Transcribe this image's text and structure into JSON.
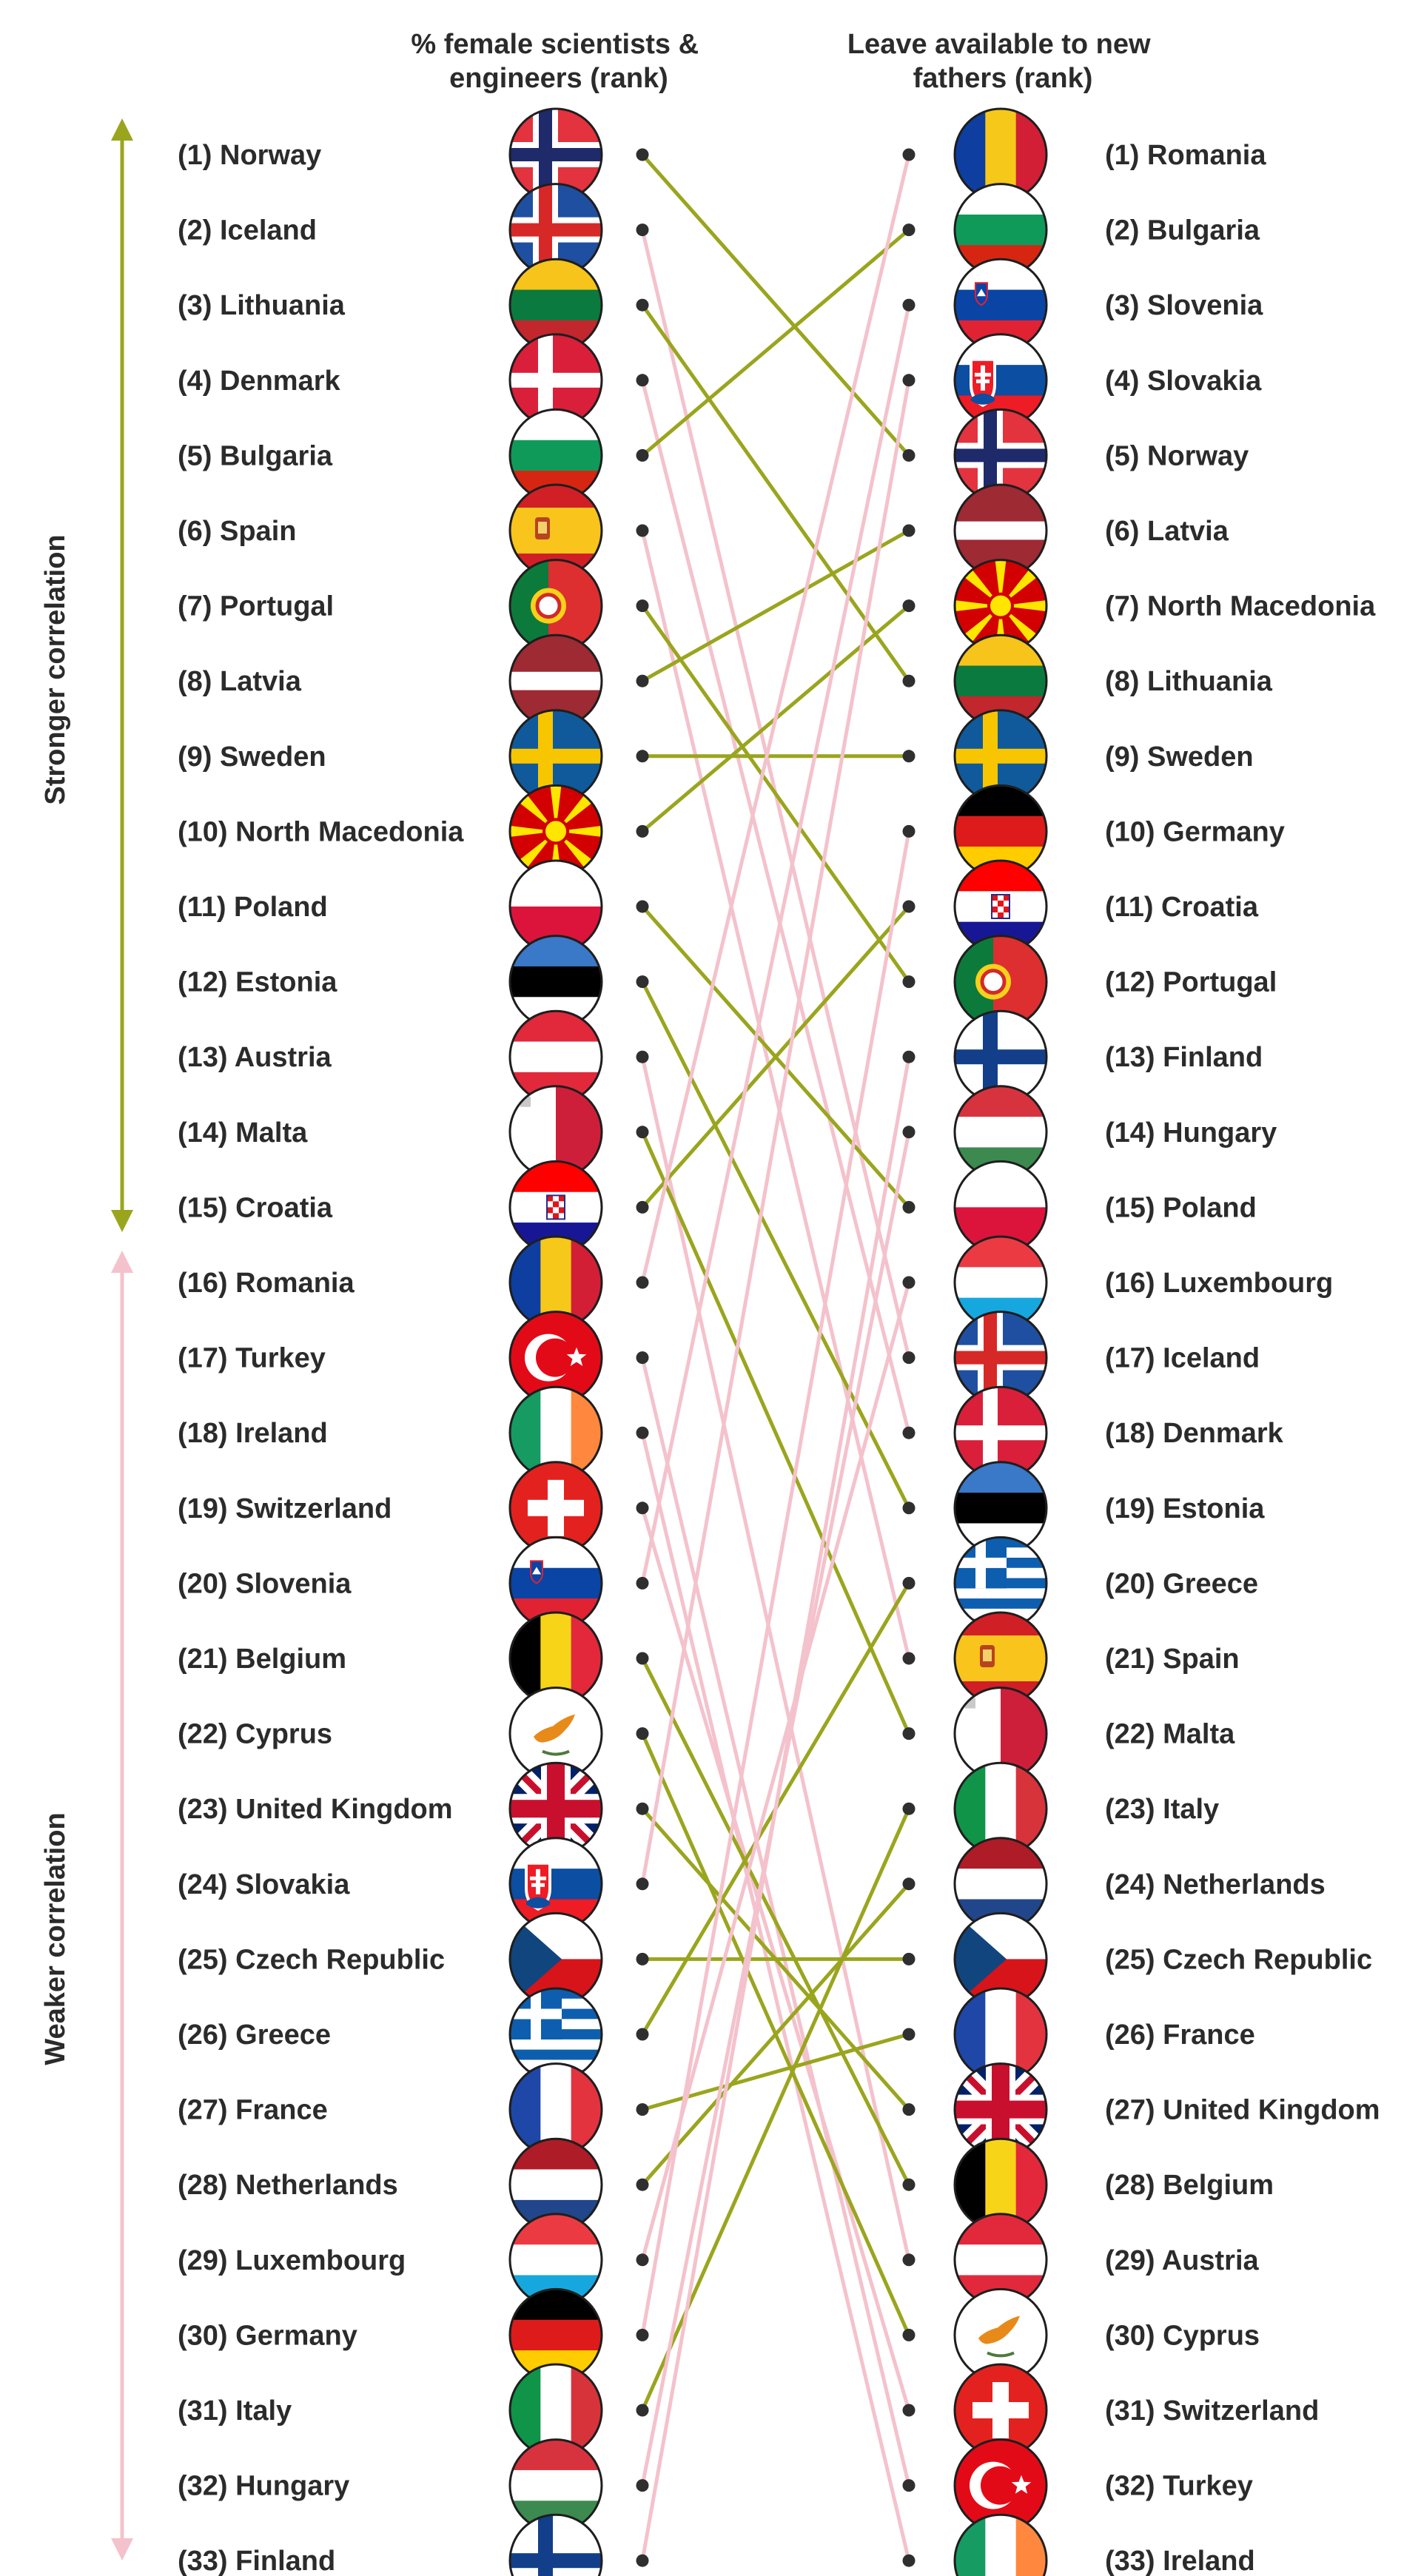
{
  "header": {
    "left_title": [
      "% female scientists &",
      "engineers (rank)"
    ],
    "right_title": [
      "Leave available to new",
      "fathers (rank)"
    ]
  },
  "axis": {
    "stronger_label": "Stronger correlation",
    "weaker_label": "Weaker correlation",
    "stronger_color": "#9aa51e",
    "weaker_color": "#f4c2cc"
  },
  "left": [
    {
      "rank": 1,
      "name": "Norway",
      "label": "(1) Norway",
      "flag": "norway"
    },
    {
      "rank": 2,
      "name": "Iceland",
      "label": "(2) Iceland",
      "flag": "iceland"
    },
    {
      "rank": 3,
      "name": "Lithuania",
      "label": "(3) Lithuania",
      "flag": "lithuania"
    },
    {
      "rank": 4,
      "name": "Denmark",
      "label": "(4) Denmark",
      "flag": "denmark"
    },
    {
      "rank": 5,
      "name": "Bulgaria",
      "label": "(5) Bulgaria",
      "flag": "bulgaria"
    },
    {
      "rank": 6,
      "name": "Spain",
      "label": "(6) Spain",
      "flag": "spain"
    },
    {
      "rank": 7,
      "name": "Portugal",
      "label": "(7) Portugal",
      "flag": "portugal"
    },
    {
      "rank": 8,
      "name": "Latvia",
      "label": "(8) Latvia",
      "flag": "latvia"
    },
    {
      "rank": 9,
      "name": "Sweden",
      "label": "(9) Sweden",
      "flag": "sweden"
    },
    {
      "rank": 10,
      "name": "North Macedonia",
      "label": "(10) North Macedonia",
      "flag": "north_macedonia"
    },
    {
      "rank": 11,
      "name": "Poland",
      "label": "(11) Poland",
      "flag": "poland"
    },
    {
      "rank": 12,
      "name": "Estonia",
      "label": "(12) Estonia",
      "flag": "estonia"
    },
    {
      "rank": 13,
      "name": "Austria",
      "label": "(13) Austria",
      "flag": "austria"
    },
    {
      "rank": 14,
      "name": "Malta",
      "label": "(14) Malta",
      "flag": "malta"
    },
    {
      "rank": 15,
      "name": "Croatia",
      "label": "(15) Croatia",
      "flag": "croatia"
    },
    {
      "rank": 16,
      "name": "Romania",
      "label": "(16) Romania",
      "flag": "romania"
    },
    {
      "rank": 17,
      "name": "Turkey",
      "label": "(17) Turkey",
      "flag": "turkey"
    },
    {
      "rank": 18,
      "name": "Ireland",
      "label": "(18) Ireland",
      "flag": "ireland"
    },
    {
      "rank": 19,
      "name": "Switzerland",
      "label": "(19) Switzerland",
      "flag": "switzerland"
    },
    {
      "rank": 20,
      "name": "Slovenia",
      "label": "(20) Slovenia",
      "flag": "slovenia"
    },
    {
      "rank": 21,
      "name": "Belgium",
      "label": "(21) Belgium",
      "flag": "belgium"
    },
    {
      "rank": 22,
      "name": "Cyprus",
      "label": "(22) Cyprus",
      "flag": "cyprus"
    },
    {
      "rank": 23,
      "name": "United Kingdom",
      "label": "(23) United Kingdom",
      "flag": "uk"
    },
    {
      "rank": 24,
      "name": "Slovakia",
      "label": "(24) Slovakia",
      "flag": "slovakia"
    },
    {
      "rank": 25,
      "name": "Czech Republic",
      "label": "(25) Czech Republic",
      "flag": "czech"
    },
    {
      "rank": 26,
      "name": "Greece",
      "label": "(26) Greece",
      "flag": "greece"
    },
    {
      "rank": 27,
      "name": "France",
      "label": "(27) France",
      "flag": "france"
    },
    {
      "rank": 28,
      "name": "Netherlands",
      "label": "(28) Netherlands",
      "flag": "netherlands"
    },
    {
      "rank": 29,
      "name": "Luxembourg",
      "label": "(29) Luxembourg",
      "flag": "luxembourg"
    },
    {
      "rank": 30,
      "name": "Germany",
      "label": "(30) Germany",
      "flag": "germany"
    },
    {
      "rank": 31,
      "name": "Italy",
      "label": "(31) Italy",
      "flag": "italy"
    },
    {
      "rank": 32,
      "name": "Hungary",
      "label": "(32) Hungary",
      "flag": "hungary"
    },
    {
      "rank": 33,
      "name": "Finland",
      "label": "(33) Finland",
      "flag": "finland"
    }
  ],
  "right": [
    {
      "rank": 1,
      "name": "Romania",
      "label": "(1) Romania",
      "flag": "romania"
    },
    {
      "rank": 2,
      "name": "Bulgaria",
      "label": "(2) Bulgaria",
      "flag": "bulgaria"
    },
    {
      "rank": 3,
      "name": "Slovenia",
      "label": "(3) Slovenia",
      "flag": "slovenia"
    },
    {
      "rank": 4,
      "name": "Slovakia",
      "label": "(4) Slovakia",
      "flag": "slovakia"
    },
    {
      "rank": 5,
      "name": "Norway",
      "label": "(5) Norway",
      "flag": "norway"
    },
    {
      "rank": 6,
      "name": "Latvia",
      "label": "(6) Latvia",
      "flag": "latvia"
    },
    {
      "rank": 7,
      "name": "North Macedonia",
      "label": "(7) North Macedonia",
      "flag": "north_macedonia"
    },
    {
      "rank": 8,
      "name": "Lithuania",
      "label": "(8) Lithuania",
      "flag": "lithuania"
    },
    {
      "rank": 9,
      "name": "Sweden",
      "label": "(9) Sweden",
      "flag": "sweden"
    },
    {
      "rank": 10,
      "name": "Germany",
      "label": "(10) Germany",
      "flag": "germany"
    },
    {
      "rank": 11,
      "name": "Croatia",
      "label": "(11) Croatia",
      "flag": "croatia"
    },
    {
      "rank": 12,
      "name": "Portugal",
      "label": "(12) Portugal",
      "flag": "portugal"
    },
    {
      "rank": 13,
      "name": "Finland",
      "label": "(13) Finland",
      "flag": "finland"
    },
    {
      "rank": 14,
      "name": "Hungary",
      "label": "(14) Hungary",
      "flag": "hungary"
    },
    {
      "rank": 15,
      "name": "Poland",
      "label": "(15) Poland",
      "flag": "poland"
    },
    {
      "rank": 16,
      "name": "Luxembourg",
      "label": "(16) Luxembourg",
      "flag": "luxembourg"
    },
    {
      "rank": 17,
      "name": "Iceland",
      "label": "(17) Iceland",
      "flag": "iceland"
    },
    {
      "rank": 18,
      "name": "Denmark",
      "label": "(18) Denmark",
      "flag": "denmark"
    },
    {
      "rank": 19,
      "name": "Estonia",
      "label": "(19) Estonia",
      "flag": "estonia"
    },
    {
      "rank": 20,
      "name": "Greece",
      "label": "(20) Greece",
      "flag": "greece"
    },
    {
      "rank": 21,
      "name": "Spain",
      "label": "(21) Spain",
      "flag": "spain"
    },
    {
      "rank": 22,
      "name": "Malta",
      "label": "(22) Malta",
      "flag": "malta"
    },
    {
      "rank": 23,
      "name": "Italy",
      "label": "(23) Italy",
      "flag": "italy"
    },
    {
      "rank": 24,
      "name": "Netherlands",
      "label": "(24) Netherlands",
      "flag": "netherlands"
    },
    {
      "rank": 25,
      "name": "Czech Republic",
      "label": "(25) Czech Republic",
      "flag": "czech"
    },
    {
      "rank": 26,
      "name": "France",
      "label": "(26) France",
      "flag": "france"
    },
    {
      "rank": 27,
      "name": "United Kingdom",
      "label": "(27) United Kingdom",
      "flag": "uk"
    },
    {
      "rank": 28,
      "name": "Belgium",
      "label": "(28) Belgium",
      "flag": "belgium"
    },
    {
      "rank": 29,
      "name": "Austria",
      "label": "(29) Austria",
      "flag": "austria"
    },
    {
      "rank": 30,
      "name": "Cyprus",
      "label": "(30) Cyprus",
      "flag": "cyprus"
    },
    {
      "rank": 31,
      "name": "Switzerland",
      "label": "(31) Switzerland",
      "flag": "switzerland"
    },
    {
      "rank": 32,
      "name": "Turkey",
      "label": "(32) Turkey",
      "flag": "turkey"
    },
    {
      "rank": 33,
      "name": "Ireland",
      "label": "(33) Ireland",
      "flag": "ireland"
    }
  ],
  "links": [
    {
      "from": 1,
      "to": 5,
      "strength": "stronger"
    },
    {
      "from": 2,
      "to": 17,
      "strength": "weaker"
    },
    {
      "from": 3,
      "to": 8,
      "strength": "stronger"
    },
    {
      "from": 4,
      "to": 18,
      "strength": "weaker"
    },
    {
      "from": 5,
      "to": 2,
      "strength": "stronger"
    },
    {
      "from": 6,
      "to": 21,
      "strength": "weaker"
    },
    {
      "from": 7,
      "to": 12,
      "strength": "stronger"
    },
    {
      "from": 8,
      "to": 6,
      "strength": "stronger"
    },
    {
      "from": 9,
      "to": 9,
      "strength": "stronger"
    },
    {
      "from": 10,
      "to": 7,
      "strength": "stronger"
    },
    {
      "from": 11,
      "to": 15,
      "strength": "stronger"
    },
    {
      "from": 12,
      "to": 19,
      "strength": "stronger"
    },
    {
      "from": 13,
      "to": 29,
      "strength": "weaker"
    },
    {
      "from": 14,
      "to": 22,
      "strength": "stronger"
    },
    {
      "from": 15,
      "to": 11,
      "strength": "stronger"
    },
    {
      "from": 16,
      "to": 1,
      "strength": "weaker"
    },
    {
      "from": 17,
      "to": 32,
      "strength": "weaker"
    },
    {
      "from": 18,
      "to": 33,
      "strength": "weaker"
    },
    {
      "from": 19,
      "to": 31,
      "strength": "weaker"
    },
    {
      "from": 20,
      "to": 3,
      "strength": "weaker"
    },
    {
      "from": 21,
      "to": 28,
      "strength": "stronger"
    },
    {
      "from": 22,
      "to": 30,
      "strength": "stronger"
    },
    {
      "from": 23,
      "to": 27,
      "strength": "stronger"
    },
    {
      "from": 24,
      "to": 4,
      "strength": "weaker"
    },
    {
      "from": 25,
      "to": 25,
      "strength": "stronger"
    },
    {
      "from": 26,
      "to": 20,
      "strength": "stronger"
    },
    {
      "from": 27,
      "to": 26,
      "strength": "stronger"
    },
    {
      "from": 28,
      "to": 24,
      "strength": "stronger"
    },
    {
      "from": 29,
      "to": 16,
      "strength": "weaker"
    },
    {
      "from": 30,
      "to": 10,
      "strength": "weaker"
    },
    {
      "from": 31,
      "to": 23,
      "strength": "stronger"
    },
    {
      "from": 32,
      "to": 14,
      "strength": "weaker"
    },
    {
      "from": 33,
      "to": 13,
      "strength": "weaker"
    }
  ]
}
